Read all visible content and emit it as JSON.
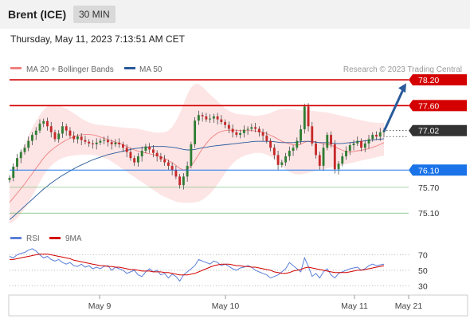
{
  "header": {
    "instrument": "Brent (ICE)",
    "timeframe": "30 MIN",
    "datetime": "Thursday, May 11, 2023 7:13:51 AM CET"
  },
  "legend": {
    "ma20": "MA 20 + Bollinger Bands",
    "ma50": "MA 50",
    "credit": "Research © 2023 Trading Central",
    "rsi": "RSI",
    "ma9": "9MA"
  },
  "colors": {
    "resistance": "#d40000",
    "support": "#1a73e8",
    "ma20": "#f08080",
    "ma50": "#2a5a9a",
    "band": "#fde0e0",
    "rsi": "#5b7fd9",
    "ma9": "#d40000",
    "up": "#2e7d32",
    "down": "#c62828",
    "arrow": "#2a5a9a",
    "current": "#333333"
  },
  "chart_data": {
    "type": "candlestick",
    "ylim": [
      74.9,
      78.35
    ],
    "levels": [
      {
        "label": "78.20",
        "value": 78.2,
        "kind": "resistance"
      },
      {
        "label": "77.60",
        "value": 77.6,
        "kind": "resistance"
      },
      {
        "label": "77.02",
        "value": 77.02,
        "kind": "current"
      },
      {
        "label": "76.10",
        "value": 76.1,
        "kind": "support"
      },
      {
        "label": "75.70",
        "value": 75.7,
        "kind": "target"
      },
      {
        "label": "75.10",
        "value": 75.1,
        "kind": "target"
      }
    ],
    "x_ticks": [
      "May 9",
      "May 10",
      "May 11",
      "May 21"
    ],
    "close": [
      75.92,
      76.18,
      76.38,
      76.52,
      76.62,
      76.78,
      76.92,
      77.02,
      77.18,
      77.24,
      77.12,
      76.98,
      76.82,
      76.95,
      77.12,
      77.02,
      76.9,
      76.82,
      76.88,
      76.8,
      76.76,
      76.72,
      76.7,
      76.74,
      76.78,
      76.8,
      76.75,
      76.7,
      76.74,
      76.7,
      76.62,
      76.52,
      76.38,
      76.28,
      76.42,
      76.55,
      76.65,
      76.58,
      76.5,
      76.42,
      76.35,
      76.28,
      76.2,
      76.1,
      75.95,
      75.75,
      75.95,
      76.2,
      76.7,
      77.25,
      77.38,
      77.35,
      77.28,
      77.3,
      77.35,
      77.28,
      77.22,
      77.15,
      77.06,
      76.98,
      76.92,
      76.96,
      77.04,
      77.06,
      77.1,
      77.06,
      76.98,
      76.9,
      76.78,
      76.62,
      76.45,
      76.22,
      76.28,
      76.42,
      76.55,
      76.62,
      76.78,
      77.05,
      77.58,
      77.12,
      76.72,
      76.45,
      76.2,
      76.62,
      76.92,
      76.7,
      76.12,
      76.25,
      76.42,
      76.55,
      76.68,
      76.72,
      76.78,
      76.62,
      76.72,
      76.82,
      76.92,
      76.88,
      76.98,
      77.02
    ],
    "ma20": [
      75.35,
      75.45,
      75.56,
      75.67,
      75.78,
      75.9,
      76.02,
      76.14,
      76.26,
      76.38,
      76.48,
      76.56,
      76.63,
      76.69,
      76.75,
      76.8,
      76.84,
      76.87,
      76.9,
      76.92,
      76.93,
      76.93,
      76.92,
      76.9,
      76.87,
      76.84,
      76.81,
      76.78,
      76.75,
      76.72,
      76.69,
      76.65,
      76.61,
      76.57,
      76.54,
      76.52,
      76.5,
      76.48,
      76.46,
      76.44,
      76.41,
      76.37,
      76.32,
      76.27,
      76.21,
      76.14,
      76.1,
      76.12,
      76.2,
      76.32,
      76.46,
      76.6,
      76.72,
      76.82,
      76.9,
      76.96,
      77.0,
      77.02,
      77.03,
      77.03,
      77.03,
      77.02,
      77.02,
      77.02,
      77.02,
      77.01,
      77.0,
      76.98,
      76.95,
      76.91,
      76.87,
      76.82,
      76.77,
      76.74,
      76.71,
      76.69,
      76.68,
      76.7,
      76.75,
      76.77,
      76.77,
      76.76,
      76.73,
      76.71,
      76.7,
      76.68,
      76.64,
      76.6,
      76.56,
      76.53,
      76.52,
      76.53,
      76.55,
      76.56,
      76.58,
      76.6,
      76.63,
      76.66,
      76.7,
      76.74
    ],
    "upper": [
      75.9,
      76.1,
      76.3,
      76.5,
      76.7,
      76.9,
      77.08,
      77.24,
      77.38,
      77.5,
      77.58,
      77.62,
      77.62,
      77.6,
      77.57,
      77.53,
      77.48,
      77.42,
      77.36,
      77.3,
      77.25,
      77.21,
      77.18,
      77.16,
      77.15,
      77.14,
      77.13,
      77.12,
      77.11,
      77.1,
      77.09,
      77.08,
      77.08,
      77.07,
      77.06,
      77.04,
      77.02,
      77.0,
      76.98,
      76.97,
      76.97,
      76.98,
      77.02,
      77.1,
      77.24,
      77.42,
      77.64,
      77.86,
      78.02,
      78.1,
      78.1,
      78.04,
      77.95,
      77.86,
      77.78,
      77.7,
      77.62,
      77.54,
      77.48,
      77.44,
      77.41,
      77.4,
      77.39,
      77.38,
      77.37,
      77.36,
      77.37,
      77.38,
      77.4,
      77.43,
      77.47,
      77.5,
      77.52,
      77.53,
      77.53,
      77.52,
      77.5,
      77.49,
      77.49,
      77.49,
      77.48,
      77.47,
      77.46,
      77.45,
      77.44,
      77.42,
      77.4,
      77.38,
      77.36,
      77.34,
      77.32,
      77.3,
      77.28,
      77.26,
      77.24,
      77.22,
      77.21,
      77.2,
      77.2,
      77.2
    ],
    "lower": [
      74.85,
      74.9,
      74.98,
      75.08,
      75.2,
      75.34,
      75.5,
      75.66,
      75.82,
      75.98,
      76.1,
      76.2,
      76.28,
      76.34,
      76.38,
      76.41,
      76.43,
      76.44,
      76.45,
      76.46,
      76.46,
      76.46,
      76.45,
      76.44,
      76.42,
      76.39,
      76.35,
      76.3,
      76.24,
      76.18,
      76.12,
      76.06,
      76.0,
      75.94,
      75.88,
      75.82,
      75.76,
      75.7,
      75.64,
      75.58,
      75.52,
      75.48,
      75.44,
      75.4,
      75.37,
      75.35,
      75.34,
      75.34,
      75.34,
      75.35,
      75.37,
      75.41,
      75.47,
      75.55,
      75.65,
      75.77,
      75.9,
      76.03,
      76.15,
      76.25,
      76.33,
      76.39,
      76.43,
      76.46,
      76.48,
      76.5,
      76.5,
      76.49,
      76.46,
      76.42,
      76.36,
      76.28,
      76.2,
      76.12,
      76.06,
      76.02,
      76.0,
      76.0,
      76.02,
      76.04,
      76.06,
      76.08,
      76.1,
      76.12,
      76.14,
      76.16,
      76.18,
      76.2,
      76.22,
      76.24,
      76.26,
      76.28,
      76.3,
      76.32,
      76.34,
      76.36,
      76.38,
      76.4,
      76.42,
      76.44
    ],
    "ma50": [
      74.95,
      75.02,
      75.1,
      75.18,
      75.26,
      75.34,
      75.42,
      75.5,
      75.58,
      75.66,
      75.73,
      75.8,
      75.86,
      75.92,
      75.98,
      76.03,
      76.08,
      76.13,
      76.18,
      76.22,
      76.26,
      76.3,
      76.34,
      76.37,
      76.4,
      76.43,
      76.46,
      76.48,
      76.5,
      76.52,
      76.54,
      76.56,
      76.58,
      76.6,
      76.61,
      76.62,
      76.63,
      76.64,
      76.65,
      76.65,
      76.65,
      76.65,
      76.64,
      76.63,
      76.62,
      76.6,
      76.58,
      76.57,
      76.57,
      76.58,
      76.6,
      76.62,
      76.63,
      76.65,
      76.66,
      76.67,
      76.68,
      76.69,
      76.7,
      76.71,
      76.72,
      76.73,
      76.74,
      76.75,
      76.76,
      76.77,
      76.77,
      76.77,
      76.77,
      76.77,
      76.76,
      76.75,
      76.74,
      76.74,
      76.74,
      76.74,
      76.75,
      76.76,
      76.77,
      76.77,
      76.76,
      76.75,
      76.74,
      76.74,
      76.74,
      76.73,
      76.72,
      76.72,
      76.72,
      76.73,
      76.74,
      76.75,
      76.76,
      76.77,
      76.78,
      76.79,
      76.8,
      76.81,
      76.82,
      76.83
    ],
    "rsi": {
      "ticks": [
        70,
        50,
        30
      ],
      "ylim": [
        20,
        85
      ],
      "values": [
        68,
        66,
        70,
        72,
        73,
        76,
        78,
        75,
        70,
        66,
        68,
        64,
        62,
        64,
        60,
        58,
        60,
        56,
        55,
        58,
        54,
        56,
        52,
        54,
        52,
        55,
        56,
        50,
        54,
        52,
        50,
        46,
        48,
        50,
        44,
        42,
        48,
        52,
        48,
        50,
        44,
        46,
        40,
        45,
        42,
        36,
        44,
        48,
        52,
        56,
        64,
        62,
        60,
        58,
        62,
        60,
        56,
        58,
        55,
        52,
        50,
        53,
        54,
        56,
        54,
        50,
        48,
        46,
        44,
        40,
        42,
        44,
        48,
        52,
        60,
        56,
        52,
        48,
        66,
        55,
        42,
        46,
        40,
        48,
        52,
        44,
        40,
        46,
        48,
        50,
        52,
        53,
        54,
        50,
        52,
        56,
        58,
        56,
        57,
        58
      ],
      "ma9": [
        64,
        64,
        65,
        66,
        67,
        68,
        69,
        70,
        71,
        71,
        71,
        70,
        69,
        68,
        67,
        66,
        65,
        63,
        62,
        61,
        60,
        59,
        58,
        57,
        56,
        56,
        55,
        55,
        54,
        54,
        53,
        52,
        51,
        51,
        50,
        49,
        49,
        49,
        48,
        48,
        48,
        47,
        47,
        46,
        45,
        44,
        44,
        44,
        45,
        46,
        48,
        50,
        52,
        54,
        56,
        57,
        58,
        58,
        58,
        57,
        56,
        56,
        55,
        55,
        54,
        54,
        53,
        52,
        51,
        50,
        48,
        47,
        46,
        46,
        47,
        49,
        50,
        51,
        53,
        54,
        53,
        52,
        51,
        50,
        49,
        48,
        47,
        47,
        47,
        47,
        48,
        49,
        50,
        50,
        51,
        52,
        53,
        54,
        55,
        56
      ]
    }
  }
}
